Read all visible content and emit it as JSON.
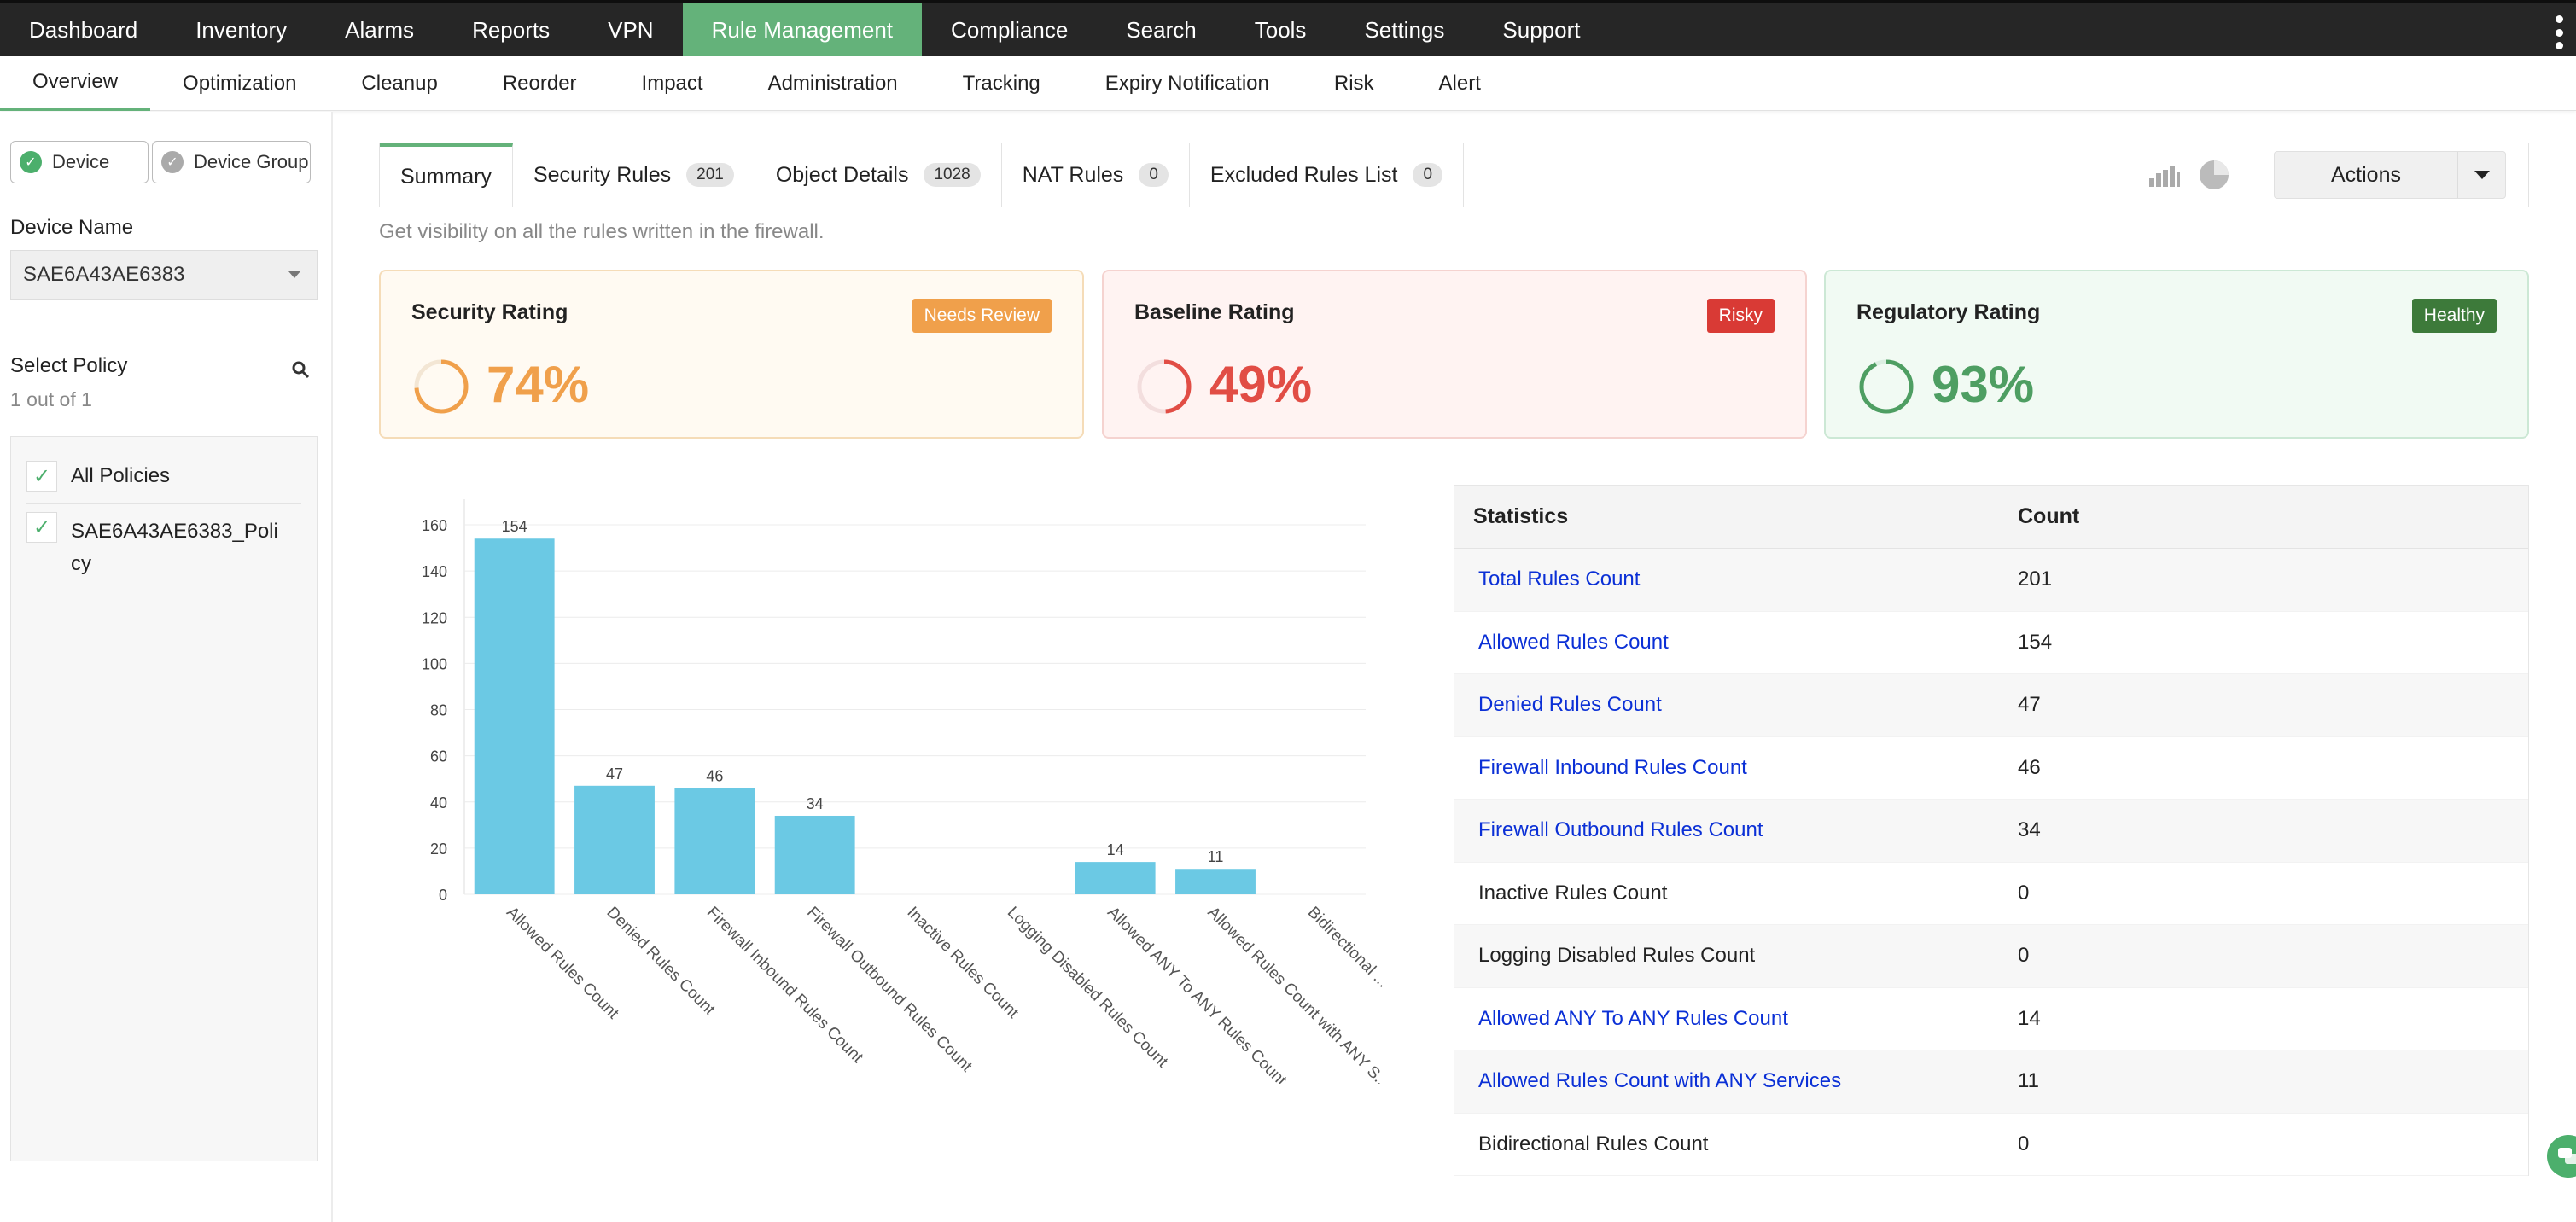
{
  "topnav": {
    "items": [
      "Dashboard",
      "Inventory",
      "Alarms",
      "Reports",
      "VPN",
      "Rule Management",
      "Compliance",
      "Search",
      "Tools",
      "Settings",
      "Support"
    ],
    "active": "Rule Management"
  },
  "subnav": {
    "items": [
      "Overview",
      "Optimization",
      "Cleanup",
      "Reorder",
      "Impact",
      "Administration",
      "Tracking",
      "Expiry Notification",
      "Risk",
      "Alert"
    ],
    "active": "Overview"
  },
  "sidebar": {
    "device_toggle": "Device",
    "device_group_toggle": "Device Group",
    "device_name_label": "Device Name",
    "device_name_value": "SAE6A43AE6383",
    "select_policy_label": "Select Policy",
    "policy_count": "1 out of 1",
    "policies": [
      "All Policies",
      "SAE6A43AE6383_Poli cy"
    ]
  },
  "tabs": [
    {
      "label": "Summary",
      "badge": null
    },
    {
      "label": "Security Rules",
      "badge": "201"
    },
    {
      "label": "Object Details",
      "badge": "1028"
    },
    {
      "label": "NAT Rules",
      "badge": "0"
    },
    {
      "label": "Excluded Rules List",
      "badge": "0"
    }
  ],
  "actions_label": "Actions",
  "hint": "Get visibility on all the rules written in the firewall.",
  "ratings": {
    "security": {
      "title": "Security Rating",
      "tag": "Needs Review",
      "percent": "74%",
      "value": 74,
      "color": "#f0a04b",
      "bg": "#fffaf2",
      "border": "#f5dcb8",
      "tag_color": "#f0a04b"
    },
    "baseline": {
      "title": "Baseline Rating",
      "tag": "Risky",
      "percent": "49%",
      "value": 49,
      "color": "#e14d45",
      "bg": "#fff3f2",
      "border": "#f5d3d0",
      "tag_color": "#d93a35"
    },
    "regulatory": {
      "title": "Regulatory Rating",
      "tag": "Healthy",
      "percent": "93%",
      "value": 93,
      "color": "#4e9e62",
      "bg": "#f1faf3",
      "border": "#cce8d5",
      "tag_color": "#3d7a3a"
    }
  },
  "chart_data": {
    "type": "bar",
    "categories": [
      "Allowed Rules Count",
      "Denied Rules Count",
      "Firewall Inbound Rules Count",
      "Firewall Outbound Rules Count",
      "Inactive Rules Count",
      "Logging Disabled Rules Count",
      "Allowed ANY To ANY Rules Count",
      "Allowed Rules Count with ANY S...",
      "Bidirectional ..."
    ],
    "values": [
      154,
      47,
      46,
      34,
      0,
      0,
      14,
      11,
      0
    ],
    "data_labels": [
      "154",
      "47",
      "46",
      "34",
      "",
      "",
      "14",
      "11",
      ""
    ],
    "ylim": [
      0,
      160
    ],
    "yticks": [
      0,
      20,
      40,
      60,
      80,
      100,
      120,
      140,
      160
    ],
    "grid": true,
    "bar_color": "#6bc9e4"
  },
  "stats": {
    "header": [
      "Statistics",
      "Count"
    ],
    "rows": [
      {
        "label": "Total Rules Count",
        "count": "201",
        "link": true
      },
      {
        "label": "Allowed Rules Count",
        "count": "154",
        "link": true
      },
      {
        "label": "Denied Rules Count",
        "count": "47",
        "link": true
      },
      {
        "label": "Firewall Inbound Rules Count",
        "count": "46",
        "link": true
      },
      {
        "label": "Firewall Outbound Rules Count",
        "count": "34",
        "link": true
      },
      {
        "label": "Inactive Rules Count",
        "count": "0",
        "link": false
      },
      {
        "label": "Logging Disabled Rules Count",
        "count": "0",
        "link": false
      },
      {
        "label": "Allowed ANY To ANY Rules Count",
        "count": "14",
        "link": true
      },
      {
        "label": "Allowed Rules Count with ANY Services",
        "count": "11",
        "link": true
      },
      {
        "label": "Bidirectional Rules Count",
        "count": "0",
        "link": false
      }
    ]
  }
}
